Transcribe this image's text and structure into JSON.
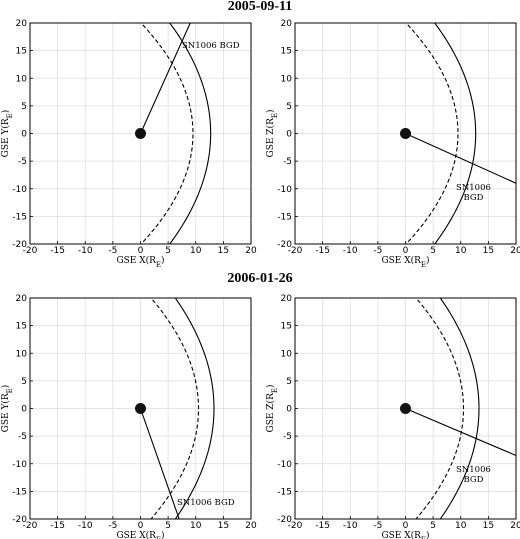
{
  "rows": [
    {
      "title": "2005-09-11"
    },
    {
      "title": "2006-01-26"
    }
  ],
  "chart_data": [
    {
      "type": "line",
      "panel": "2005-09-11 GSE X-Y",
      "xlabel": "GSE X(R",
      "xlabel_sub": "E",
      "xlabel_end": ")",
      "ylabel": "GSE Y(R",
      "ylabel_sub": "E",
      "ylabel_end": ")",
      "xlim": [
        -20,
        20
      ],
      "ylim": [
        -20,
        20
      ],
      "xticks": [
        -20,
        -15,
        -10,
        -5,
        0,
        5,
        10,
        15,
        20
      ],
      "yticks": [
        -20,
        -15,
        -10,
        -5,
        0,
        5,
        10,
        15,
        20
      ],
      "grid": true,
      "earth": {
        "x": 0,
        "y": 0
      },
      "magnetopause": {
        "standoff": 9.5,
        "flare": 0.0235,
        "style": "dashed"
      },
      "bow_shock": {
        "standoff": 12.7,
        "flare": 0.0185,
        "style": "solid"
      },
      "line_of_sight": {
        "from": [
          0,
          0
        ],
        "to": [
          9,
          20
        ]
      },
      "annotation": {
        "lines": [
          "SN1006 BGD"
        ],
        "x": 7.5,
        "y": 15.5
      }
    },
    {
      "type": "line",
      "panel": "2005-09-11 GSE X-Z",
      "xlabel": "GSE X(R",
      "xlabel_sub": "E",
      "xlabel_end": ")",
      "ylabel": "GSE Z(R",
      "ylabel_sub": "E",
      "ylabel_end": ")",
      "xlim": [
        -20,
        20
      ],
      "ylim": [
        -20,
        20
      ],
      "xticks": [
        -20,
        -15,
        -10,
        -5,
        0,
        5,
        10,
        15,
        20
      ],
      "yticks": [
        -20,
        -15,
        -10,
        -5,
        0,
        5,
        10,
        15,
        20
      ],
      "grid": true,
      "earth": {
        "x": 0,
        "y": 0
      },
      "magnetopause": {
        "standoff": 9.5,
        "flare": 0.0235,
        "style": "dashed"
      },
      "bow_shock": {
        "standoff": 12.7,
        "flare": 0.0185,
        "style": "solid"
      },
      "line_of_sight": {
        "from": [
          0,
          0
        ],
        "to": [
          20,
          -9
        ]
      },
      "annotation": {
        "lines": [
          "SN1006",
          "BGD"
        ],
        "x": 12.3,
        "y": -10.2
      }
    },
    {
      "type": "line",
      "panel": "2006-01-26 GSE X-Y",
      "xlabel": "GSE X(R",
      "xlabel_sub": "E",
      "xlabel_end": ")",
      "ylabel": "GSE Y(R",
      "ylabel_sub": "E",
      "ylabel_end": ")",
      "xlim": [
        -20,
        20
      ],
      "ylim": [
        -20,
        20
      ],
      "xticks": [
        -20,
        -15,
        -10,
        -5,
        0,
        5,
        10,
        15,
        20
      ],
      "yticks": [
        -20,
        -15,
        -10,
        -5,
        0,
        5,
        10,
        15,
        20
      ],
      "grid": true,
      "earth": {
        "x": 0,
        "y": 0
      },
      "magnetopause": {
        "standoff": 10.5,
        "flare": 0.0215,
        "style": "dashed"
      },
      "bow_shock": {
        "standoff": 13.3,
        "flare": 0.0175,
        "style": "solid"
      },
      "line_of_sight": {
        "from": [
          0,
          0
        ],
        "to": [
          7,
          -20
        ]
      },
      "annotation": {
        "lines": [
          "SN1006 BGD"
        ],
        "x": 6.6,
        "y": -17.5
      }
    },
    {
      "type": "line",
      "panel": "2006-01-26 GSE X-Z",
      "xlabel": "GSE X(R",
      "xlabel_sub": "E",
      "xlabel_end": ")",
      "ylabel": "GSE Z(R",
      "ylabel_sub": "E",
      "ylabel_end": ")",
      "xlim": [
        -20,
        20
      ],
      "ylim": [
        -20,
        20
      ],
      "xticks": [
        -20,
        -15,
        -10,
        -5,
        0,
        5,
        10,
        15,
        20
      ],
      "yticks": [
        -20,
        -15,
        -10,
        -5,
        0,
        5,
        10,
        15,
        20
      ],
      "grid": true,
      "earth": {
        "x": 0,
        "y": 0
      },
      "magnetopause": {
        "standoff": 10.5,
        "flare": 0.0215,
        "style": "dashed"
      },
      "bow_shock": {
        "standoff": 13.3,
        "flare": 0.0175,
        "style": "solid"
      },
      "line_of_sight": {
        "from": [
          0,
          0
        ],
        "to": [
          20,
          -8.5
        ]
      },
      "annotation": {
        "lines": [
          "SN1006",
          "BGD"
        ],
        "x": 12.3,
        "y": -11.5
      }
    }
  ]
}
